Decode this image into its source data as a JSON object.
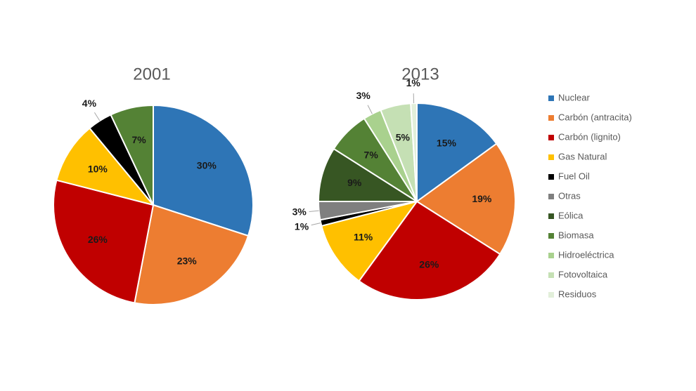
{
  "chart_data": [
    {
      "type": "pie",
      "title": "2001",
      "categories": [
        "Nuclear",
        "Carbón (antracita)",
        "Carbón (lignito)",
        "Gas Natural",
        "Fuel Oil",
        "Biomasa"
      ],
      "values": [
        30,
        23,
        26,
        10,
        4,
        7
      ],
      "value_labels": [
        "30%",
        "23%",
        "26%",
        "10%",
        "4%",
        "7%"
      ],
      "colors": [
        "#2e75b6",
        "#ed7d31",
        "#c00000",
        "#ffc000",
        "#000000",
        "#548235"
      ]
    },
    {
      "type": "pie",
      "title": "2013",
      "categories": [
        "Nuclear",
        "Carbón (antracita)",
        "Carbón (lignito)",
        "Gas Natural",
        "Fuel Oil",
        "Otras",
        "Eólica",
        "Biomasa",
        "Hidroeléctrica",
        "Fotovoltaica",
        "Residuos"
      ],
      "values": [
        15,
        19,
        26,
        11,
        1,
        3,
        9,
        7,
        3,
        5,
        1
      ],
      "value_labels": [
        "15%",
        "19%",
        "26%",
        "11%",
        "1%",
        "3%",
        "9%",
        "7%",
        "3%",
        "5%",
        "1%"
      ],
      "colors": [
        "#2e75b6",
        "#ed7d31",
        "#c00000",
        "#ffc000",
        "#000000",
        "#7f7f7f",
        "#375623",
        "#548235",
        "#a9d18e",
        "#c5e0b4",
        "#e2efda"
      ],
      "legend": {
        "position": "right",
        "names": [
          "Nuclear",
          "Carbón (antracita)",
          "Carbón (lignito)",
          "Gas Natural",
          "Fuel Oil",
          "Otras",
          "Eólica",
          "Biomasa",
          "Hidroeléctrica",
          "Fotovoltaica",
          "Residuos"
        ],
        "colors": [
          "#2e75b6",
          "#ed7d31",
          "#c00000",
          "#ffc000",
          "#000000",
          "#7f7f7f",
          "#375623",
          "#548235",
          "#a9d18e",
          "#c5e0b4",
          "#e2efda"
        ]
      }
    }
  ]
}
